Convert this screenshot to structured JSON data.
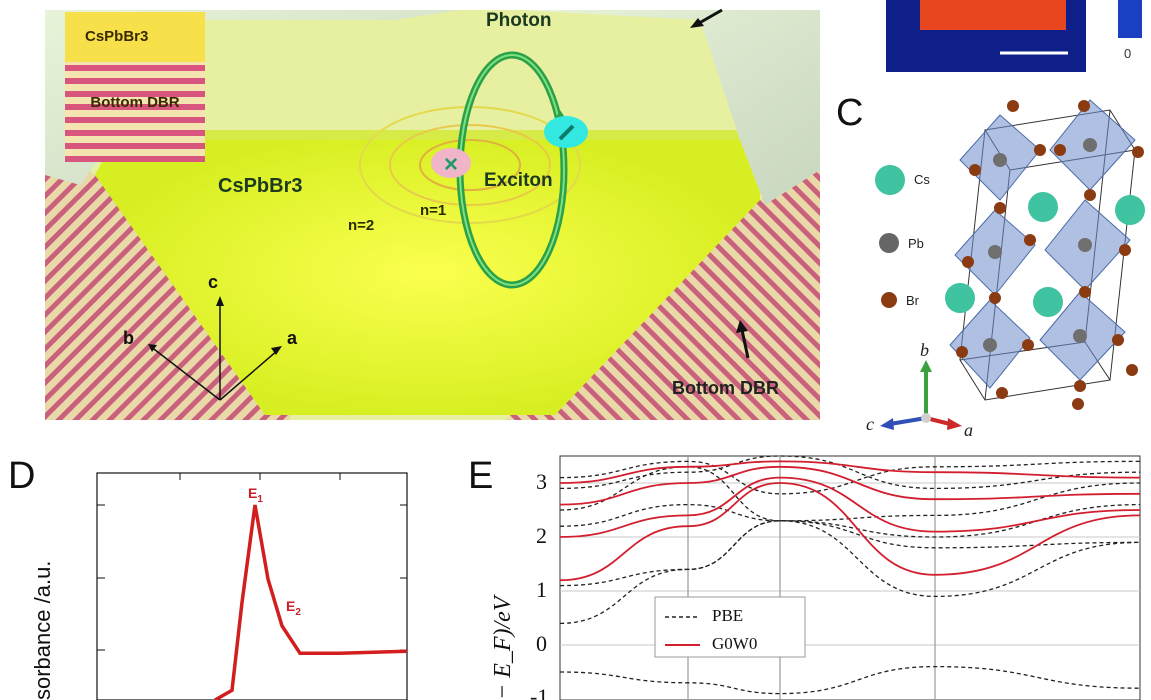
{
  "panel_a": {
    "inset_top_layer": "CsPbBr3",
    "inset_bottom_layer": "Bottom DBR",
    "photon": "Photon",
    "material": "CsPbBr3",
    "exciton": "Exciton",
    "n1": "n=1",
    "n2": "n=2",
    "axis_a": "a",
    "axis_b": "b",
    "axis_c": "c",
    "bottom_dbr": "Bottom DBR"
  },
  "panel_b": {
    "colorbar_min": "0"
  },
  "panel_c": {
    "letter": "C",
    "legend": [
      "Cs",
      "Pb",
      "Br"
    ],
    "axis_a": "a",
    "axis_b": "b",
    "axis_c": "c",
    "colors": {
      "Cs": "#3fc3a0",
      "Pb": "#777777",
      "Br": "#8a3b12"
    }
  },
  "panel_d": {
    "letter": "D",
    "ylabel": "sorbance /a.u.",
    "peak1": "E1",
    "peak2": "E2"
  },
  "panel_e": {
    "letter": "E",
    "ylabel": "− E_F)/eV",
    "yticks": [
      "3",
      "2",
      "1",
      "0",
      "-1"
    ],
    "legend": [
      "PBE",
      "G0W0"
    ]
  },
  "chart_data": [
    {
      "type": "line",
      "title": "",
      "xlabel": "",
      "ylabel": "sorbance /a.u.",
      "series": [
        {
          "values": [
            0.0,
            0.05,
            0.5,
            1.0,
            0.62,
            0.38,
            0.24,
            0.24,
            0.25
          ]
        }
      ],
      "annotations": [
        "E1",
        "E2"
      ]
    },
    {
      "type": "line",
      "title": "",
      "xlabel": "",
      "ylabel": "− E_F)/eV",
      "ylim": [
        -1.2,
        3.4
      ],
      "yticks": [
        3,
        2,
        1,
        0,
        -1
      ],
      "series": [
        {
          "name": "PBE"
        },
        {
          "name": "G0W0"
        }
      ]
    }
  ]
}
